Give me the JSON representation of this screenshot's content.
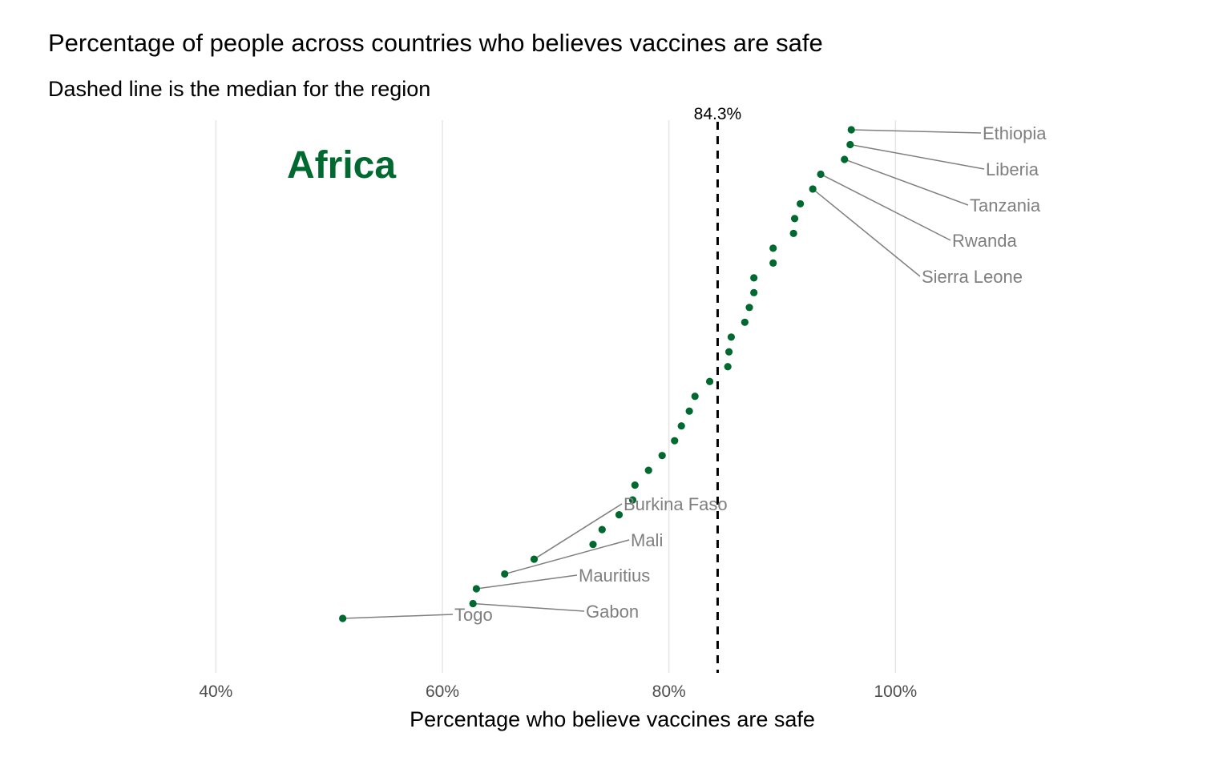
{
  "chart_data": {
    "type": "scatter",
    "title": "Percentage of people across countries who believes vaccines are safe",
    "subtitle": "Dashed line is the median for the region",
    "xlabel": "Percentage who believe vaccines are safe",
    "ylabel": "",
    "xlim": [
      30,
      120
    ],
    "x_ticks": [
      40,
      60,
      80,
      100
    ],
    "x_tick_labels": [
      "40%",
      "60%",
      "80%",
      "100%"
    ],
    "grid": true,
    "region_label": "Africa",
    "median": {
      "value": 84.3,
      "label": "84.3%"
    },
    "marker_color": "#00692f",
    "points": [
      {
        "x": 96.1,
        "name": "Ethiopia"
      },
      {
        "x": 96.0,
        "name": "Liberia"
      },
      {
        "x": 95.5,
        "name": "Tanzania"
      },
      {
        "x": 93.4,
        "name": "Rwanda"
      },
      {
        "x": 92.7,
        "name": "Sierra Leone"
      },
      {
        "x": 91.6
      },
      {
        "x": 91.1
      },
      {
        "x": 91.0
      },
      {
        "x": 89.2
      },
      {
        "x": 89.2
      },
      {
        "x": 87.5
      },
      {
        "x": 87.5
      },
      {
        "x": 87.1
      },
      {
        "x": 86.7
      },
      {
        "x": 85.5
      },
      {
        "x": 85.3
      },
      {
        "x": 85.2
      },
      {
        "x": 83.6
      },
      {
        "x": 82.3
      },
      {
        "x": 81.8
      },
      {
        "x": 81.1
      },
      {
        "x": 80.5
      },
      {
        "x": 79.4
      },
      {
        "x": 78.2
      },
      {
        "x": 77.0
      },
      {
        "x": 76.8
      },
      {
        "x": 75.6
      },
      {
        "x": 74.1
      },
      {
        "x": 73.3
      },
      {
        "x": 68.1,
        "name": "Burkina Faso"
      },
      {
        "x": 65.5,
        "name": "Mali"
      },
      {
        "x": 63.0,
        "name": "Mauritius"
      },
      {
        "x": 62.7,
        "name": "Gabon"
      },
      {
        "x": 51.2,
        "name": "Togo"
      }
    ]
  }
}
